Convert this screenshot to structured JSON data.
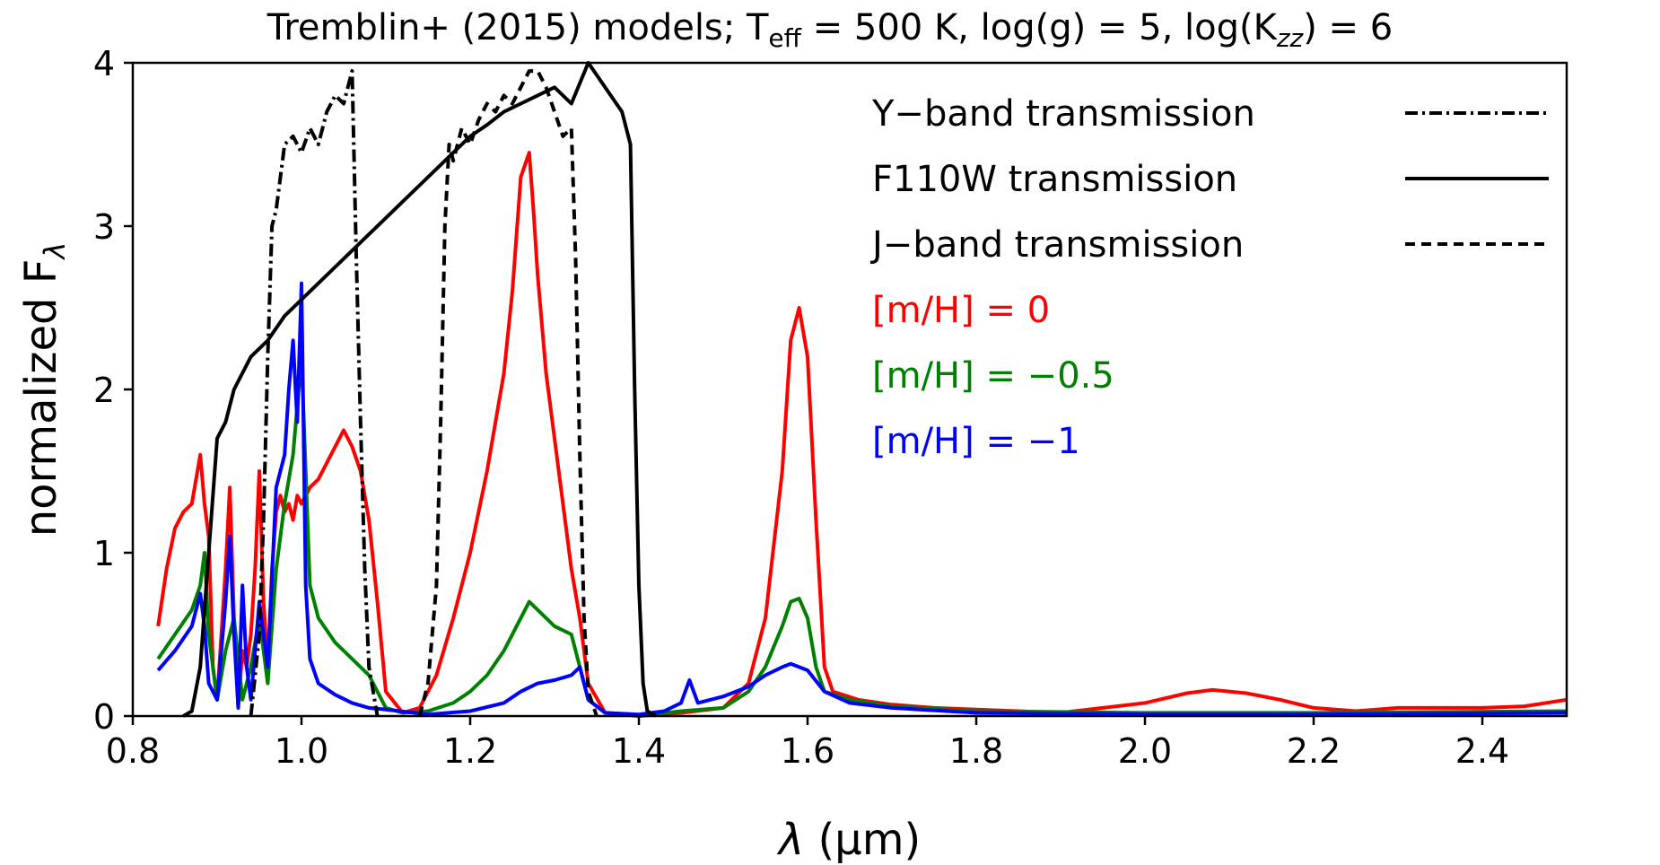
{
  "chart_data": {
    "type": "line",
    "title": {
      "prefix": "Tremblin+ (2015) models; T",
      "teff_sub": "eff",
      "mid": " = 500 K, log(g) = 5, log(K",
      "kzz_sub": "zz",
      "suffix": ") = 6"
    },
    "xlabel": {
      "lambda": "λ",
      "unit": "(μm)"
    },
    "ylabel": {
      "main": "normalized F",
      "sub": "λ"
    },
    "xlim": [
      0.8,
      2.5
    ],
    "ylim": [
      0,
      4
    ],
    "xticks": [
      "0.8",
      "1.0",
      "1.2",
      "1.4",
      "1.6",
      "1.8",
      "2.0",
      "2.2",
      "2.4"
    ],
    "yticks": [
      "0",
      "1",
      "2",
      "3",
      "4"
    ],
    "legend_position": "top-right",
    "legend": [
      {
        "label": "Y−band transmission",
        "color": "#000000",
        "style": "dashdot"
      },
      {
        "label": "F110W transmission",
        "color": "#000000",
        "style": "solid"
      },
      {
        "label": "J−band transmission",
        "color": "#000000",
        "style": "dashed"
      },
      {
        "label": "[m/H] = 0",
        "color": "#ff0000",
        "style": "text"
      },
      {
        "label": "[m/H] = −0.5",
        "color": "#008000",
        "style": "text"
      },
      {
        "label": "[m/H] = −1",
        "color": "#0000ff",
        "style": "text"
      }
    ],
    "series": [
      {
        "name": "[m/H] = 0",
        "color": "#ff0000",
        "dash": "",
        "x": [
          0.83,
          0.84,
          0.85,
          0.86,
          0.87,
          0.875,
          0.88,
          0.885,
          0.89,
          0.895,
          0.9,
          0.905,
          0.91,
          0.915,
          0.92,
          0.925,
          0.93,
          0.935,
          0.94,
          0.945,
          0.95,
          0.955,
          0.96,
          0.965,
          0.97,
          0.975,
          0.98,
          0.985,
          0.99,
          0.995,
          1.0,
          1.01,
          1.02,
          1.03,
          1.04,
          1.05,
          1.06,
          1.07,
          1.08,
          1.09,
          1.1,
          1.12,
          1.14,
          1.16,
          1.18,
          1.2,
          1.22,
          1.24,
          1.25,
          1.26,
          1.27,
          1.275,
          1.28,
          1.29,
          1.3,
          1.31,
          1.32,
          1.33,
          1.34,
          1.36,
          1.4,
          1.45,
          1.5,
          1.53,
          1.55,
          1.57,
          1.58,
          1.59,
          1.6,
          1.61,
          1.62,
          1.63,
          1.66,
          1.7,
          1.75,
          1.8,
          1.9,
          2.0,
          2.05,
          2.08,
          2.12,
          2.16,
          2.2,
          2.25,
          2.3,
          2.35,
          2.4,
          2.45,
          2.5
        ],
        "y": [
          0.55,
          0.9,
          1.15,
          1.25,
          1.3,
          1.45,
          1.6,
          1.3,
          1.1,
          0.3,
          0.1,
          0.5,
          0.9,
          1.4,
          0.6,
          0.05,
          0.4,
          0.3,
          0.5,
          0.9,
          1.5,
          0.7,
          0.3,
          0.9,
          1.25,
          1.35,
          1.25,
          1.3,
          1.2,
          1.35,
          1.3,
          1.4,
          1.45,
          1.55,
          1.65,
          1.75,
          1.65,
          1.5,
          1.2,
          0.7,
          0.15,
          0.02,
          0.05,
          0.25,
          0.6,
          1.0,
          1.5,
          2.1,
          2.6,
          3.3,
          3.45,
          3.1,
          2.7,
          2.1,
          1.7,
          1.3,
          0.9,
          0.6,
          0.2,
          0.02,
          0.0,
          0.02,
          0.05,
          0.2,
          0.6,
          1.5,
          2.3,
          2.5,
          2.2,
          1.2,
          0.3,
          0.15,
          0.1,
          0.07,
          0.05,
          0.04,
          0.02,
          0.08,
          0.14,
          0.16,
          0.14,
          0.1,
          0.05,
          0.03,
          0.05,
          0.05,
          0.05,
          0.06,
          0.1
        ]
      },
      {
        "name": "[m/H] = −0.5",
        "color": "#008000",
        "dash": "",
        "x": [
          0.83,
          0.85,
          0.87,
          0.88,
          0.885,
          0.89,
          0.9,
          0.91,
          0.92,
          0.93,
          0.94,
          0.95,
          0.96,
          0.97,
          0.98,
          0.99,
          1.0,
          1.01,
          1.02,
          1.04,
          1.06,
          1.08,
          1.1,
          1.12,
          1.15,
          1.18,
          1.2,
          1.22,
          1.24,
          1.26,
          1.27,
          1.28,
          1.3,
          1.32,
          1.33,
          1.34,
          1.36,
          1.4,
          1.45,
          1.5,
          1.53,
          1.55,
          1.57,
          1.58,
          1.59,
          1.6,
          1.61,
          1.62,
          1.65,
          1.7,
          1.8,
          2.0,
          2.2,
          2.5
        ],
        "y": [
          0.35,
          0.5,
          0.65,
          0.8,
          1.0,
          0.5,
          0.1,
          0.4,
          0.6,
          0.1,
          0.3,
          0.6,
          0.2,
          0.9,
          1.3,
          1.6,
          2.2,
          0.8,
          0.6,
          0.45,
          0.35,
          0.25,
          0.05,
          0.02,
          0.03,
          0.08,
          0.15,
          0.25,
          0.4,
          0.6,
          0.7,
          0.65,
          0.55,
          0.5,
          0.3,
          0.1,
          0.02,
          0.0,
          0.03,
          0.05,
          0.15,
          0.3,
          0.55,
          0.7,
          0.72,
          0.6,
          0.3,
          0.15,
          0.1,
          0.06,
          0.03,
          0.02,
          0.02,
          0.03
        ]
      },
      {
        "name": "[m/H] = −1",
        "color": "#0000ff",
        "dash": "",
        "x": [
          0.83,
          0.85,
          0.87,
          0.875,
          0.88,
          0.885,
          0.89,
          0.9,
          0.91,
          0.915,
          0.92,
          0.925,
          0.93,
          0.935,
          0.94,
          0.95,
          0.96,
          0.97,
          0.98,
          0.985,
          0.99,
          0.995,
          1.0,
          1.005,
          1.01,
          1.02,
          1.04,
          1.06,
          1.08,
          1.1,
          1.15,
          1.2,
          1.24,
          1.26,
          1.28,
          1.3,
          1.32,
          1.33,
          1.34,
          1.36,
          1.4,
          1.43,
          1.45,
          1.46,
          1.47,
          1.5,
          1.53,
          1.55,
          1.57,
          1.58,
          1.6,
          1.62,
          1.65,
          1.7,
          1.8,
          2.0,
          2.2,
          2.5
        ],
        "y": [
          0.28,
          0.4,
          0.55,
          0.65,
          0.75,
          0.55,
          0.2,
          0.1,
          0.7,
          1.1,
          0.5,
          0.05,
          0.8,
          0.3,
          0.1,
          0.7,
          0.3,
          1.4,
          1.6,
          2.0,
          2.3,
          1.8,
          2.65,
          0.8,
          0.35,
          0.2,
          0.13,
          0.08,
          0.05,
          0.04,
          0.01,
          0.03,
          0.08,
          0.15,
          0.2,
          0.22,
          0.25,
          0.3,
          0.1,
          0.02,
          0.01,
          0.03,
          0.08,
          0.22,
          0.08,
          0.12,
          0.18,
          0.25,
          0.3,
          0.32,
          0.28,
          0.15,
          0.08,
          0.05,
          0.02,
          0.01,
          0.01,
          0.02
        ]
      },
      {
        "name": "Y−band transmission",
        "color": "#000000",
        "dash": "14,5,3,5",
        "x": [
          0.94,
          0.95,
          0.955,
          0.96,
          0.965,
          0.97,
          0.98,
          0.99,
          1.0,
          1.01,
          1.02,
          1.03,
          1.04,
          1.05,
          1.055,
          1.06,
          1.065,
          1.07,
          1.075,
          1.08,
          1.09
        ],
        "y": [
          0.0,
          0.5,
          1.2,
          2.2,
          3.0,
          3.1,
          3.5,
          3.55,
          3.45,
          3.6,
          3.5,
          3.7,
          3.8,
          3.75,
          3.85,
          3.95,
          2.8,
          1.8,
          0.9,
          0.3,
          0.0
        ]
      },
      {
        "name": "F110W transmission",
        "color": "#000000",
        "dash": "",
        "x": [
          0.86,
          0.87,
          0.88,
          0.89,
          0.9,
          0.91,
          0.92,
          0.94,
          0.96,
          0.98,
          1.0,
          1.02,
          1.04,
          1.06,
          1.08,
          1.1,
          1.12,
          1.14,
          1.16,
          1.18,
          1.2,
          1.22,
          1.24,
          1.26,
          1.28,
          1.3,
          1.32,
          1.34,
          1.36,
          1.38,
          1.39,
          1.395,
          1.4,
          1.405,
          1.41,
          1.42
        ],
        "y": [
          0.0,
          0.03,
          0.3,
          1.0,
          1.7,
          1.8,
          2.0,
          2.2,
          2.3,
          2.45,
          2.55,
          2.65,
          2.75,
          2.85,
          2.95,
          3.05,
          3.15,
          3.25,
          3.35,
          3.45,
          3.55,
          3.62,
          3.7,
          3.75,
          3.8,
          3.85,
          3.75,
          4.0,
          3.85,
          3.7,
          3.5,
          2.0,
          0.8,
          0.2,
          0.03,
          0.0
        ]
      },
      {
        "name": "J−band transmission",
        "color": "#000000",
        "dash": "11,7",
        "x": [
          1.14,
          1.15,
          1.16,
          1.165,
          1.17,
          1.175,
          1.18,
          1.19,
          1.2,
          1.21,
          1.22,
          1.23,
          1.24,
          1.25,
          1.26,
          1.27,
          1.28,
          1.29,
          1.3,
          1.31,
          1.32,
          1.325,
          1.33,
          1.335,
          1.34,
          1.35
        ],
        "y": [
          0.0,
          0.2,
          0.8,
          1.8,
          3.0,
          3.5,
          3.4,
          3.6,
          3.5,
          3.65,
          3.75,
          3.7,
          3.8,
          3.75,
          3.85,
          3.95,
          3.95,
          3.85,
          3.7,
          3.55,
          3.6,
          2.8,
          1.6,
          0.6,
          0.15,
          0.0
        ]
      }
    ]
  }
}
